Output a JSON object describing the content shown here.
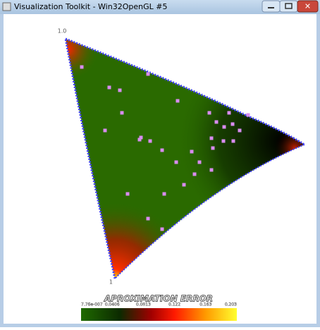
{
  "window": {
    "title": "Visualization Toolkit - Win32OpenGL #5"
  },
  "scene": {
    "corner_labels": [
      "1.0",
      "1"
    ]
  },
  "color_bar": {
    "title": "APROXIMATION ERROR",
    "tick_labels": [
      "7.76e-007",
      "0.0406",
      "0.0813",
      "0.122",
      "0.163",
      "0.203"
    ]
  }
}
